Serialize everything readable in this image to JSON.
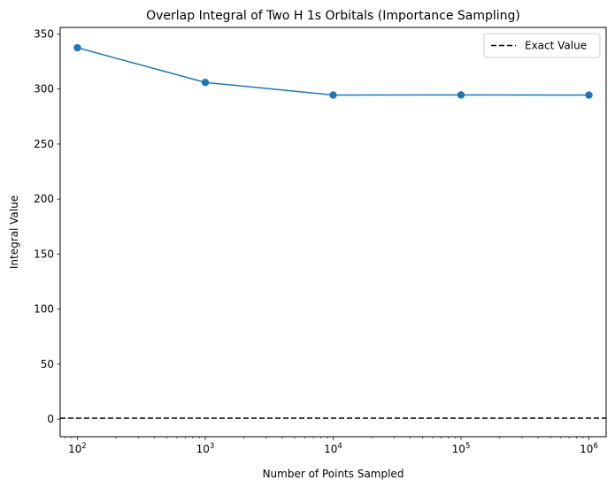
{
  "chart_data": {
    "type": "line",
    "title": "Overlap Integral of Two H 1s Orbitals (Importance Sampling)",
    "xlabel": "Number of Points Sampled",
    "ylabel": "Integral Value",
    "xscale": "log",
    "x": [
      100,
      1000,
      10000,
      100000,
      1000000
    ],
    "xtick_labels": [
      {
        "base": "10",
        "exp": "2"
      },
      {
        "base": "10",
        "exp": "3"
      },
      {
        "base": "10",
        "exp": "4"
      },
      {
        "base": "10",
        "exp": "5"
      },
      {
        "base": "10",
        "exp": "6"
      }
    ],
    "yticks": [
      0,
      50,
      100,
      150,
      200,
      250,
      300,
      350
    ],
    "ylim": [
      -16,
      356
    ],
    "series": [
      {
        "values": [
          337.5,
          306.0,
          294.5,
          294.6,
          294.5
        ],
        "color": "#1f77b4",
        "marker": "circle"
      }
    ],
    "reference_line": {
      "name": "Exact Value",
      "value": 0.86,
      "color": "#000000",
      "style": "dashed"
    },
    "legend": {
      "position": "top-right",
      "entries": [
        "Exact Value"
      ]
    },
    "grid": false
  }
}
